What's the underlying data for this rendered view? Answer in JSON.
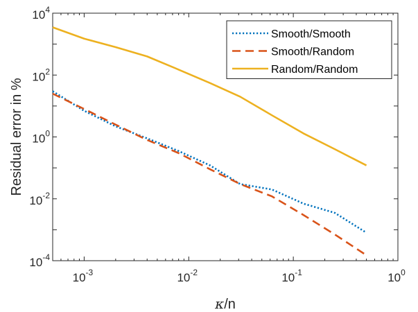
{
  "chart_data": {
    "type": "line",
    "title": "",
    "xlabel": {
      "symbol": "κ",
      "suffix": "/n"
    },
    "ylabel": "Residual error in %",
    "x_scale": "log",
    "y_scale": "log",
    "xlim": [
      0.0005,
      1
    ],
    "ylim": [
      0.0001,
      10000
    ],
    "x_ticks": [
      {
        "value": 0.001,
        "base": "10",
        "exp": "-3"
      },
      {
        "value": 0.01,
        "base": "10",
        "exp": "-2"
      },
      {
        "value": 0.1,
        "base": "10",
        "exp": "-1"
      },
      {
        "value": 1,
        "base": "10",
        "exp": "0"
      }
    ],
    "y_ticks": [
      {
        "value": 0.0001,
        "base": "10",
        "exp": "-4"
      },
      {
        "value": 0.01,
        "base": "10",
        "exp": "-2"
      },
      {
        "value": 1,
        "base": "10",
        "exp": "0"
      },
      {
        "value": 100,
        "base": "10",
        "exp": "2"
      },
      {
        "value": 10000,
        "base": "10",
        "exp": "4"
      }
    ],
    "grid": false,
    "legend_position": "top-right",
    "series": [
      {
        "name": "Smooth/Smooth",
        "color": "#0072BD",
        "style": "dotted",
        "points": [
          [
            0.0005,
            30
          ],
          [
            0.001,
            7
          ],
          [
            0.002,
            2.2
          ],
          [
            0.004,
            0.9
          ],
          [
            0.008,
            0.35
          ],
          [
            0.016,
            0.12
          ],
          [
            0.031,
            0.03
          ],
          [
            0.0625,
            0.02
          ],
          [
            0.125,
            0.007
          ],
          [
            0.25,
            0.0035
          ],
          [
            0.5,
            0.0008
          ]
        ]
      },
      {
        "name": "Smooth/Random",
        "color": "#D95319",
        "style": "dashed",
        "points": [
          [
            0.0005,
            25
          ],
          [
            0.001,
            8
          ],
          [
            0.002,
            2.5
          ],
          [
            0.004,
            0.8
          ],
          [
            0.008,
            0.3
          ],
          [
            0.016,
            0.09
          ],
          [
            0.031,
            0.03
          ],
          [
            0.0625,
            0.012
          ],
          [
            0.125,
            0.003
          ],
          [
            0.25,
            0.0007
          ],
          [
            0.5,
            0.00015
          ]
        ]
      },
      {
        "name": "Random/Random",
        "color": "#EDB120",
        "style": "solid",
        "points": [
          [
            0.0005,
            3500
          ],
          [
            0.001,
            1500
          ],
          [
            0.002,
            800
          ],
          [
            0.004,
            400
          ],
          [
            0.008,
            150
          ],
          [
            0.016,
            55
          ],
          [
            0.031,
            20
          ],
          [
            0.0625,
            5
          ],
          [
            0.125,
            1.3
          ],
          [
            0.25,
            0.4
          ],
          [
            0.5,
            0.12
          ]
        ]
      }
    ]
  }
}
